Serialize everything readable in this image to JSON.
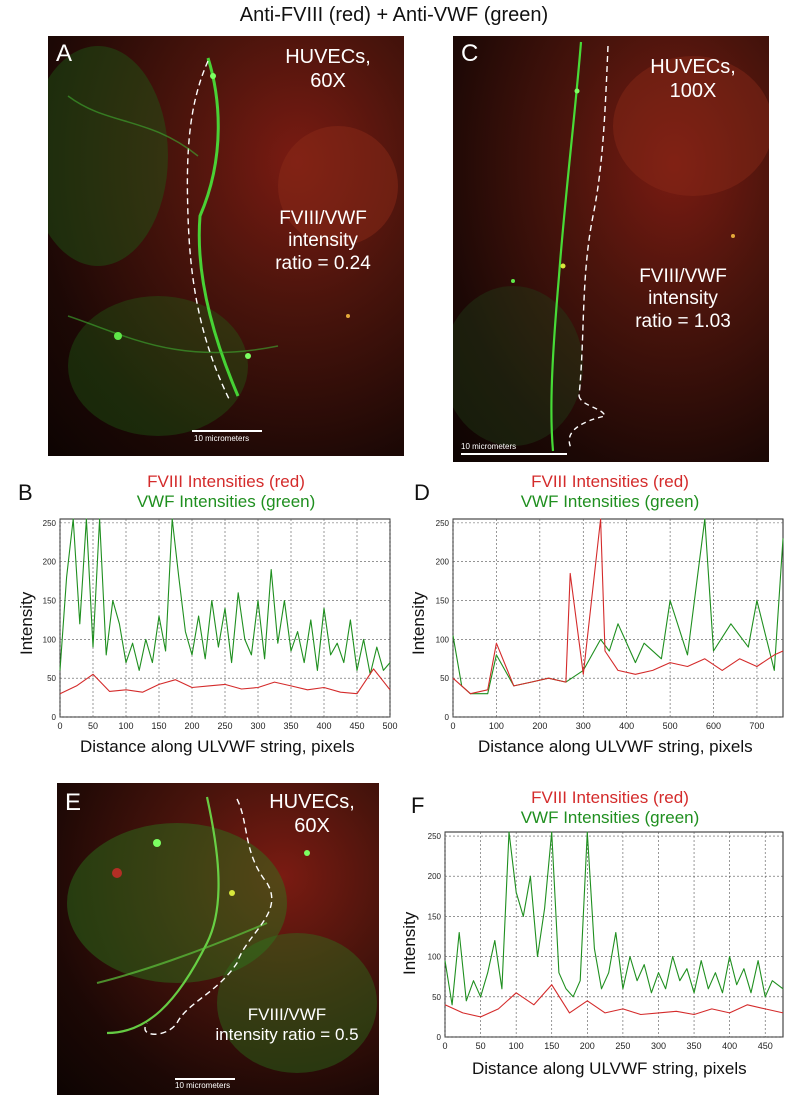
{
  "figure": {
    "title": "Anti-FVIII (red) + Anti-VWF (green)"
  },
  "panels": {
    "A": {
      "letter": "A",
      "header": "HUVECs,",
      "magnification": "60X",
      "ratio_line1": "FVIII/VWF",
      "ratio_line2": "intensity",
      "ratio_line3": "ratio = 0.24",
      "scale_label": "10 micrometers"
    },
    "C": {
      "letter": "C",
      "header": "HUVECs,",
      "magnification": "100X",
      "ratio_line1": "FVIII/VWF",
      "ratio_line2": "intensity",
      "ratio_line3": "ratio = 1.03",
      "scale_label": "10 micrometers"
    },
    "E": {
      "letter": "E",
      "header": "HUVECs,",
      "magnification": "60X",
      "ratio_line1": "FVIII/VWF",
      "ratio_line2": "intensity ratio = 0.5",
      "scale_label": "10 micrometers"
    }
  },
  "plots": {
    "B": {
      "letter": "B",
      "title_red": "FVIII Intensities (red)",
      "title_green": "VWF Intensities (green)"
    },
    "D": {
      "letter": "D",
      "title_red": "FVIII Intensities (red)",
      "title_green": "VWF Intensities (green)"
    },
    "F": {
      "letter": "F",
      "title_red": "FVIII Intensities (red)",
      "title_green": "VWF Intensities (green)"
    }
  },
  "colors": {
    "fviii": "#d42b2b",
    "vwf": "#1f8f1f",
    "grid": "#555555"
  },
  "chart_data": [
    {
      "id": "B",
      "type": "line",
      "title": "FVIII Intensities (red)\nVWF Intensities (green)",
      "xlabel": "Distance along ULVWF string, pixels",
      "ylabel": "Intensity",
      "xlim": [
        0,
        500
      ],
      "ylim": [
        0,
        255
      ],
      "xticks": [
        0,
        50,
        100,
        150,
        200,
        250,
        300,
        350,
        400,
        450,
        500
      ],
      "xtick_labels": [
        "0",
        "50",
        "100",
        "150",
        "200",
        "250",
        "300",
        "350",
        "400",
        "450",
        "500"
      ],
      "yticks": [
        0,
        50,
        100,
        150,
        200,
        250
      ],
      "ytick_labels": [
        "0",
        "50",
        "100",
        "150",
        "200",
        "250"
      ],
      "grid": true,
      "series": [
        {
          "name": "FVIII Intensities (red)",
          "color": "#d42b2b",
          "x": [
            0,
            25,
            50,
            75,
            100,
            125,
            150,
            175,
            200,
            225,
            250,
            275,
            300,
            325,
            350,
            375,
            400,
            425,
            450,
            475,
            500
          ],
          "values": [
            30,
            40,
            55,
            33,
            35,
            32,
            42,
            48,
            38,
            40,
            42,
            36,
            38,
            45,
            40,
            35,
            38,
            32,
            30,
            62,
            35
          ]
        },
        {
          "name": "VWF Intensities (green)",
          "color": "#1f8f1f",
          "x": [
            0,
            10,
            20,
            30,
            40,
            50,
            60,
            70,
            80,
            90,
            100,
            110,
            120,
            130,
            140,
            150,
            160,
            170,
            180,
            190,
            200,
            210,
            220,
            230,
            240,
            250,
            260,
            270,
            280,
            290,
            300,
            310,
            320,
            330,
            340,
            350,
            360,
            370,
            380,
            390,
            400,
            410,
            420,
            430,
            440,
            450,
            460,
            470,
            480,
            490,
            500
          ],
          "values": [
            60,
            180,
            255,
            120,
            255,
            90,
            255,
            80,
            150,
            120,
            70,
            95,
            60,
            100,
            70,
            130,
            85,
            255,
            180,
            110,
            80,
            130,
            75,
            150,
            90,
            140,
            70,
            160,
            100,
            80,
            150,
            75,
            190,
            95,
            150,
            85,
            110,
            70,
            125,
            60,
            140,
            80,
            95,
            70,
            125,
            60,
            100,
            55,
            90,
            60,
            70
          ]
        }
      ]
    },
    {
      "id": "D",
      "type": "line",
      "title": "FVIII Intensities (red)\nVWF Intensities (green)",
      "xlabel": "Distance along ULVWF string, pixels",
      "ylabel": "Intensity",
      "xlim": [
        0,
        760
      ],
      "ylim": [
        0,
        255
      ],
      "xticks": [
        0,
        100,
        200,
        300,
        400,
        500,
        600,
        700
      ],
      "xtick_labels": [
        "0",
        "100",
        "200",
        "300",
        "400",
        "500",
        "600",
        "700"
      ],
      "yticks": [
        0,
        50,
        100,
        150,
        200,
        250
      ],
      "ytick_labels": [
        "0",
        "50",
        "100",
        "150",
        "200",
        "250"
      ],
      "grid": true,
      "series": [
        {
          "name": "FVIII Intensities (red)",
          "color": "#d42b2b",
          "x": [
            0,
            40,
            80,
            100,
            140,
            180,
            220,
            260,
            270,
            300,
            340,
            350,
            380,
            420,
            460,
            500,
            540,
            580,
            620,
            660,
            700,
            740,
            760
          ],
          "values": [
            50,
            30,
            35,
            95,
            40,
            45,
            50,
            45,
            185,
            55,
            255,
            85,
            60,
            55,
            60,
            70,
            65,
            75,
            60,
            75,
            65,
            80,
            85
          ]
        },
        {
          "name": "VWF Intensities (green)",
          "color": "#1f8f1f",
          "x": [
            0,
            20,
            40,
            80,
            100,
            140,
            180,
            220,
            260,
            300,
            340,
            360,
            380,
            420,
            440,
            480,
            500,
            540,
            580,
            600,
            640,
            680,
            700,
            740,
            760
          ],
          "values": [
            105,
            40,
            30,
            30,
            80,
            40,
            45,
            50,
            45,
            60,
            100,
            85,
            120,
            70,
            95,
            75,
            150,
            80,
            255,
            85,
            120,
            90,
            150,
            60,
            230
          ]
        }
      ]
    },
    {
      "id": "F",
      "type": "line",
      "title": "FVIII Intensities (red)\nVWF Intensities (green)",
      "xlabel": "Distance along ULVWF string, pixels",
      "ylabel": "Intensity",
      "xlim": [
        0,
        475
      ],
      "ylim": [
        0,
        255
      ],
      "xticks": [
        0,
        50,
        100,
        150,
        200,
        250,
        300,
        350,
        400,
        450
      ],
      "xtick_labels": [
        "0",
        "50",
        "100",
        "150",
        "200",
        "250",
        "300",
        "350",
        "400",
        "450"
      ],
      "yticks": [
        0,
        50,
        100,
        150,
        200,
        250
      ],
      "ytick_labels": [
        "0",
        "50",
        "100",
        "150",
        "200",
        "250"
      ],
      "grid": true,
      "series": [
        {
          "name": "FVIII Intensities (red)",
          "color": "#d42b2b",
          "x": [
            0,
            25,
            50,
            75,
            100,
            125,
            150,
            175,
            200,
            225,
            250,
            275,
            300,
            325,
            350,
            375,
            400,
            425,
            450,
            475
          ],
          "values": [
            40,
            30,
            25,
            35,
            55,
            40,
            65,
            30,
            45,
            30,
            35,
            28,
            30,
            32,
            28,
            35,
            30,
            40,
            35,
            30
          ]
        },
        {
          "name": "VWF Intensities (green)",
          "color": "#1f8f1f",
          "x": [
            0,
            10,
            20,
            30,
            40,
            50,
            60,
            70,
            80,
            90,
            100,
            110,
            120,
            130,
            140,
            150,
            160,
            170,
            180,
            190,
            200,
            210,
            220,
            230,
            240,
            250,
            260,
            270,
            280,
            290,
            300,
            310,
            320,
            330,
            340,
            350,
            360,
            370,
            380,
            390,
            400,
            410,
            420,
            430,
            440,
            450,
            460,
            475
          ],
          "values": [
            95,
            40,
            130,
            45,
            70,
            50,
            80,
            120,
            60,
            255,
            180,
            150,
            200,
            100,
            160,
            255,
            80,
            60,
            50,
            70,
            255,
            110,
            60,
            80,
            130,
            60,
            100,
            70,
            90,
            55,
            80,
            60,
            100,
            70,
            85,
            55,
            95,
            60,
            80,
            55,
            100,
            65,
            85,
            55,
            95,
            50,
            70,
            60
          ]
        }
      ]
    }
  ]
}
